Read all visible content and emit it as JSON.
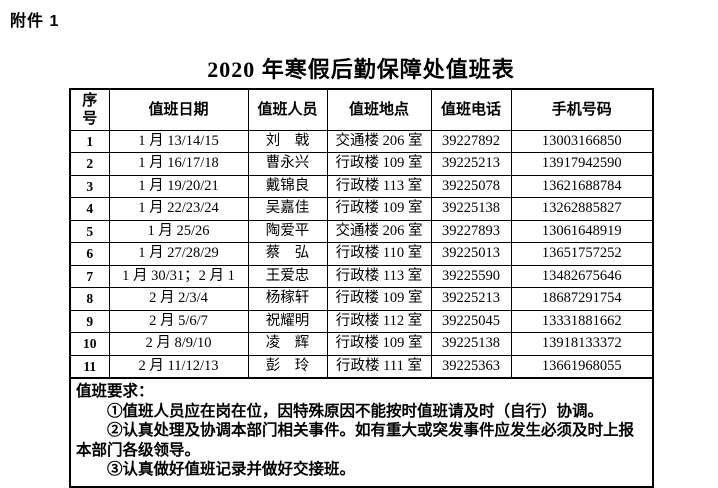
{
  "page": {
    "attachment_label": "附件 1",
    "title": "2020 年寒假后勤保障处值班表"
  },
  "table": {
    "columns": [
      "序号",
      "值班日期",
      "值班人员",
      "值班地点",
      "值班电话",
      "手机号码"
    ],
    "column_keys": [
      "index",
      "duty-date",
      "duty-person",
      "duty-location",
      "duty-phone",
      "mobile-number"
    ],
    "rows": [
      [
        "1",
        "1 月 13/14/15",
        "刘　戟",
        "交通楼 206 室",
        "39227892",
        "13003166850"
      ],
      [
        "2",
        "1 月 16/17/18",
        "曹永兴",
        "行政楼 109 室",
        "39225213",
        "13917942590"
      ],
      [
        "3",
        "1 月 19/20/21",
        "戴锦良",
        "行政楼 113 室",
        "39225078",
        "13621688784"
      ],
      [
        "4",
        "1 月 22/23/24",
        "吴嘉佳",
        "行政楼 109 室",
        "39225138",
        "13262885827"
      ],
      [
        "5",
        "1 月 25/26",
        "陶爱平",
        "交通楼 206 室",
        "39227893",
        "13061648919"
      ],
      [
        "6",
        "1 月 27/28/29",
        "蔡　弘",
        "行政楼 110 室",
        "39225013",
        "13651757252"
      ],
      [
        "7",
        "1 月 30/31；2 月 1",
        "王爱忠",
        "行政楼 113 室",
        "39225590",
        "13482675646"
      ],
      [
        "8",
        "2 月 2/3/4",
        "杨稼轩",
        "行政楼 109 室",
        "39225213",
        "18687291754"
      ],
      [
        "9",
        "2 月 5/6/7",
        "祝耀明",
        "行政楼 112 室",
        "39225045",
        "13331881662"
      ],
      [
        "10",
        "2 月 8/9/10",
        "凌　辉",
        "行政楼 109 室",
        "39225138",
        "13918133372"
      ],
      [
        "11",
        "2 月 11/12/13",
        "彭　玲",
        "行政楼 111 室",
        "39225363",
        "13661968055"
      ]
    ]
  },
  "notes": {
    "heading": "值班要求：",
    "items": [
      "①值班人员应在岗在位，因特殊原因不能按时值班请及时（自行）协调。",
      "②认真处理及协调本部门相关事件。如有重大或突发事件应发生必须及时上报本部门各级领导。",
      "③认真做好值班记录并做好交接班。"
    ]
  },
  "colors": {
    "text": "#000000",
    "border": "#000000",
    "background": "#ffffff"
  }
}
